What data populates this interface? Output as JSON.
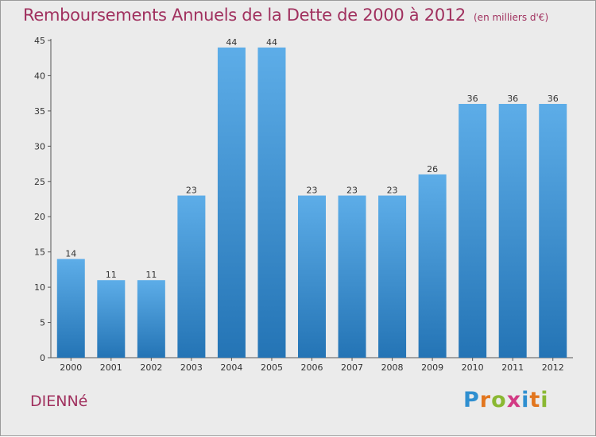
{
  "chart_data": {
    "type": "bar",
    "title": "Remboursements Annuels de la Dette de 2000 à 2012",
    "unit_note": "(en milliers d'€)",
    "categories": [
      "2000",
      "2001",
      "2002",
      "2003",
      "2004",
      "2005",
      "2006",
      "2007",
      "2008",
      "2009",
      "2010",
      "2011",
      "2012"
    ],
    "values": [
      14,
      11,
      11,
      23,
      44,
      44,
      23,
      23,
      23,
      26,
      36,
      36,
      36
    ],
    "data_labels": [
      "14",
      "11",
      "11",
      "23",
      "44",
      "44",
      "23",
      "23",
      "23",
      "26",
      "36",
      "36",
      "36"
    ],
    "ylim": [
      0,
      45
    ],
    "yticks": [
      0,
      5,
      10,
      15,
      20,
      25,
      30,
      35,
      40,
      45
    ],
    "grid": false,
    "bar_color_top": "#5dade8",
    "bar_color_bottom": "#2474b5",
    "title_color": "#a0305e"
  },
  "footer": {
    "commune": "DIENNé"
  },
  "logo": {
    "text": "Proxiti",
    "letters": [
      {
        "ch": "P",
        "color": "#2f8fd0"
      },
      {
        "ch": "r",
        "color": "#e2761e"
      },
      {
        "ch": "o",
        "color": "#8ab832"
      },
      {
        "ch": "x",
        "color": "#d23a84"
      },
      {
        "ch": "i",
        "color": "#2f8fd0"
      },
      {
        "ch": "t",
        "color": "#e2761e"
      },
      {
        "ch": "i",
        "color": "#8ab832"
      }
    ]
  }
}
